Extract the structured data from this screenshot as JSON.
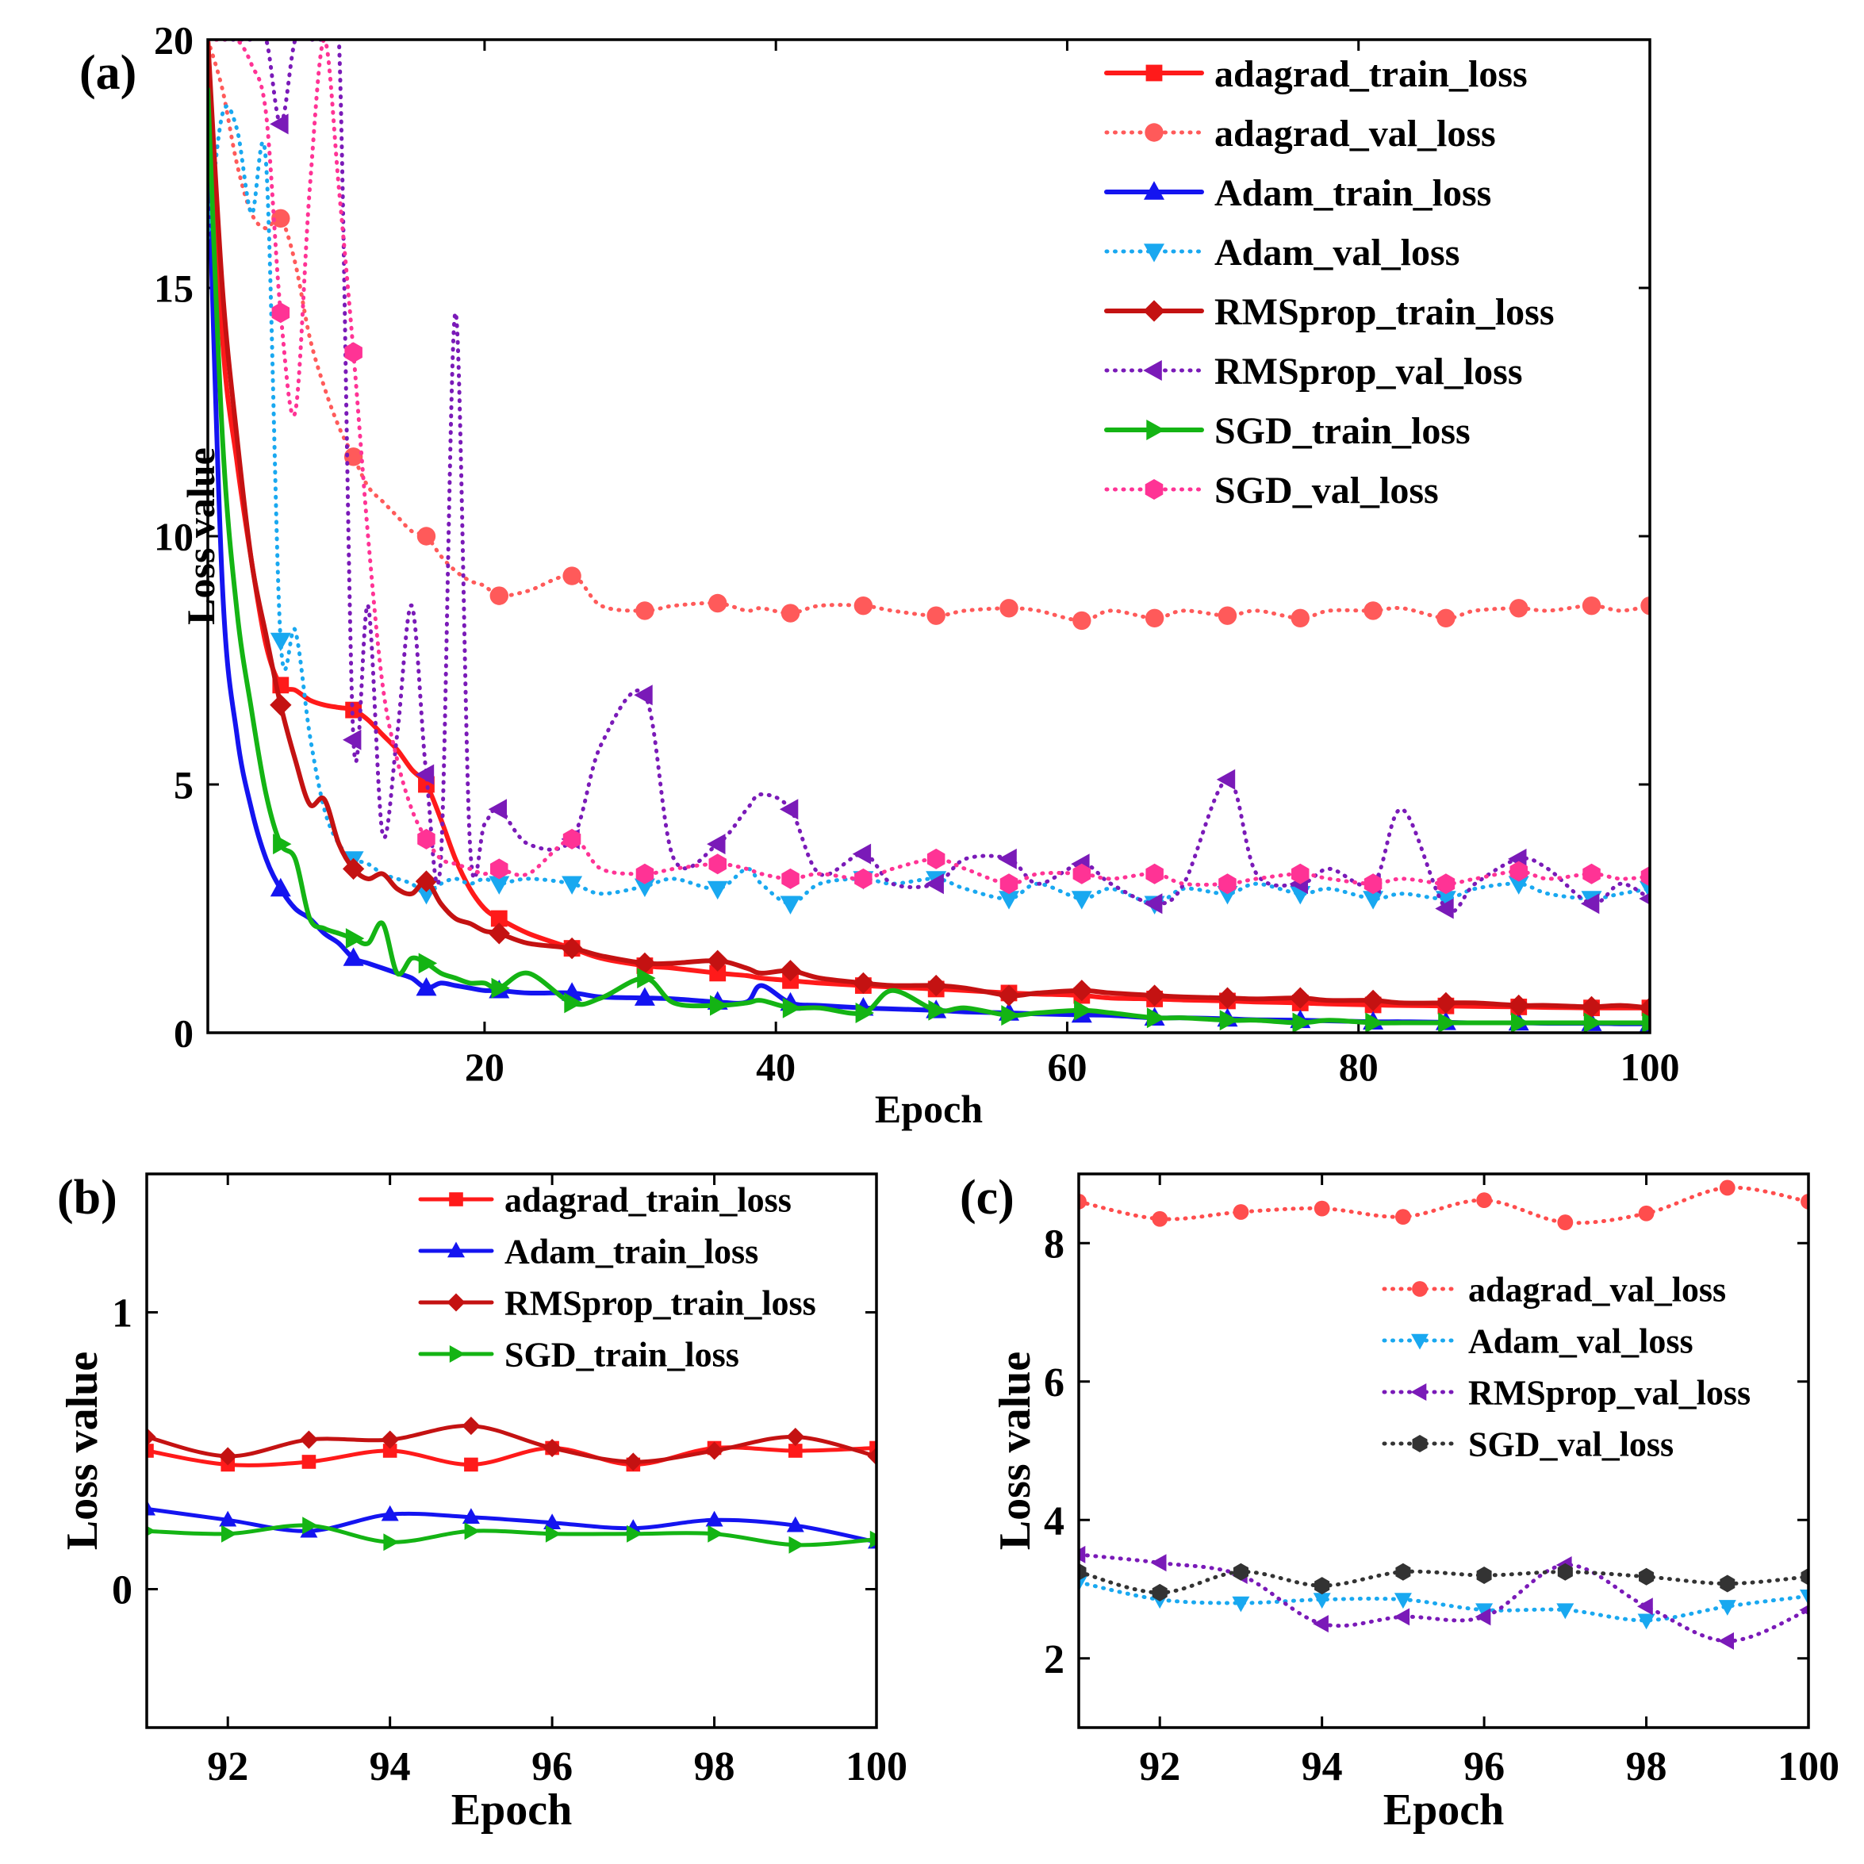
{
  "chart_data": [
    {
      "panel": "(a)",
      "type": "line",
      "xlabel": "Epoch",
      "ylabel": "Loss value",
      "xlim": [
        1,
        100
      ],
      "ylim": [
        0,
        20
      ],
      "xticks": [
        20,
        40,
        60,
        80,
        100
      ],
      "yticks": [
        0,
        5,
        10,
        15,
        20
      ],
      "legend": "top-right",
      "x": [
        1,
        2,
        3,
        4,
        5,
        6,
        7,
        8,
        9,
        10,
        11,
        12,
        13,
        14,
        15,
        16,
        17,
        18,
        19,
        20,
        21,
        23,
        26,
        28,
        31,
        33,
        36,
        38,
        39,
        41,
        43,
        46,
        48,
        51,
        53,
        56,
        58,
        61,
        63,
        66,
        68,
        71,
        73,
        76,
        78,
        81,
        83,
        86,
        88,
        91,
        93,
        96,
        98,
        100
      ],
      "series": [
        {
          "name": "adagrad_train_loss",
          "color": "#ff1a1a",
          "style": "solid",
          "marker": "square",
          "values": [
            20,
            14,
            11.5,
            9.5,
            7.8,
            7.0,
            6.9,
            6.7,
            6.6,
            6.55,
            6.5,
            6.3,
            6.0,
            5.7,
            5.3,
            5.0,
            4.3,
            3.5,
            2.9,
            2.5,
            2.3,
            2.0,
            1.7,
            1.5,
            1.35,
            1.3,
            1.2,
            1.15,
            1.1,
            1.05,
            1.0,
            0.95,
            0.92,
            0.88,
            0.85,
            0.8,
            0.78,
            0.75,
            0.7,
            0.68,
            0.66,
            0.64,
            0.62,
            0.6,
            0.58,
            0.56,
            0.55,
            0.54,
            0.53,
            0.52,
            0.51,
            0.5,
            0.5,
            0.5
          ]
        },
        {
          "name": "adagrad_val_loss",
          "color": "#ff5a5a",
          "style": "dotted",
          "marker": "circle",
          "values": [
            20,
            19,
            17.5,
            16.5,
            16.2,
            16.4,
            15.5,
            14,
            13,
            12.2,
            11.6,
            11.0,
            10.7,
            10.4,
            10.1,
            10.0,
            9.6,
            9.3,
            9.1,
            9.0,
            8.8,
            8.9,
            9.2,
            8.6,
            8.5,
            8.6,
            8.65,
            8.5,
            8.55,
            8.45,
            8.6,
            8.6,
            8.5,
            8.4,
            8.5,
            8.55,
            8.5,
            8.3,
            8.5,
            8.35,
            8.5,
            8.4,
            8.5,
            8.35,
            8.5,
            8.5,
            8.55,
            8.35,
            8.5,
            8.55,
            8.5,
            8.6,
            8.5,
            8.6
          ]
        },
        {
          "name": "Adam_train_loss",
          "color": "#1414f0",
          "style": "solid",
          "marker": "triangle-up",
          "values": [
            18,
            9,
            6,
            4.5,
            3.5,
            2.9,
            2.5,
            2.3,
            2.0,
            1.8,
            1.5,
            1.4,
            1.3,
            1.2,
            1.1,
            0.9,
            1.0,
            0.95,
            0.9,
            0.85,
            0.85,
            0.8,
            0.8,
            0.72,
            0.7,
            0.68,
            0.62,
            0.62,
            0.95,
            0.6,
            0.55,
            0.5,
            0.48,
            0.45,
            0.42,
            0.4,
            0.38,
            0.36,
            0.35,
            0.3,
            0.3,
            0.28,
            0.26,
            0.25,
            0.24,
            0.22,
            0.22,
            0.21,
            0.2,
            0.2,
            0.19,
            0.19,
            0.18,
            0.18
          ]
        },
        {
          "name": "Adam_val_loss",
          "color": "#19a8f0",
          "style": "dotted",
          "marker": "triangle-down",
          "values": [
            16,
            18.5,
            18.2,
            16.5,
            17.5,
            7.9,
            8.1,
            6.0,
            4.5,
            3.8,
            3.5,
            3.4,
            3.2,
            3.1,
            3.0,
            2.8,
            3.0,
            3.1,
            3.0,
            3.1,
            3.0,
            3.1,
            3.0,
            2.8,
            2.95,
            3.1,
            2.9,
            3.3,
            3.0,
            2.6,
            3.0,
            3.1,
            3.0,
            3.1,
            2.9,
            2.7,
            3.0,
            2.7,
            2.9,
            2.6,
            2.9,
            2.8,
            3.0,
            2.8,
            2.9,
            2.7,
            2.8,
            2.7,
            2.9,
            3.0,
            2.8,
            2.7,
            2.8,
            2.9
          ]
        },
        {
          "name": "RMSprop_train_loss",
          "color": "#c41212",
          "style": "solid",
          "marker": "diamond",
          "values": [
            20,
            15,
            12,
            9.5,
            8.0,
            6.6,
            5.5,
            4.6,
            4.7,
            3.8,
            3.3,
            3.1,
            3.2,
            2.9,
            2.8,
            3.05,
            2.6,
            2.3,
            2.2,
            2.05,
            2.0,
            1.8,
            1.7,
            1.55,
            1.4,
            1.4,
            1.45,
            1.3,
            1.2,
            1.25,
            1.1,
            1.0,
            0.95,
            0.95,
            0.9,
            0.75,
            0.8,
            0.85,
            0.8,
            0.75,
            0.72,
            0.7,
            0.68,
            0.7,
            0.65,
            0.65,
            0.6,
            0.6,
            0.6,
            0.55,
            0.55,
            0.52,
            0.55,
            0.5
          ]
        },
        {
          "name": "RMSprop_val_loss",
          "color": "#7a1ab8",
          "style": "dotted",
          "marker": "triangle-left",
          "values": [
            20,
            20,
            20,
            20,
            20,
            18.3,
            20,
            20,
            20,
            20,
            5.9,
            8.6,
            4.0,
            6.0,
            8.6,
            5.2,
            3.5,
            14.5,
            3.8,
            4.2,
            4.5,
            3.8,
            3.9,
            5.8,
            6.8,
            3.5,
            3.8,
            4.5,
            4.8,
            4.5,
            3.2,
            3.6,
            3.0,
            3.0,
            3.5,
            3.5,
            3.0,
            3.4,
            3.0,
            2.6,
            3.0,
            5.1,
            3.2,
            3.0,
            3.3,
            3.0,
            4.5,
            2.5,
            3.0,
            3.5,
            3.3,
            2.6,
            3.0,
            2.7
          ]
        },
        {
          "name": "SGD_train_loss",
          "color": "#14b414",
          "style": "solid",
          "marker": "triangle-right",
          "values": [
            19,
            12,
            8.5,
            6.5,
            4.8,
            3.8,
            3.5,
            2.3,
            2.1,
            2.0,
            1.9,
            1.8,
            2.2,
            1.2,
            1.5,
            1.4,
            1.2,
            1.1,
            1.0,
            1.0,
            0.9,
            1.2,
            0.6,
            0.7,
            1.1,
            0.6,
            0.55,
            0.6,
            0.65,
            0.5,
            0.5,
            0.4,
            0.85,
            0.45,
            0.5,
            0.35,
            0.4,
            0.45,
            0.4,
            0.3,
            0.3,
            0.25,
            0.25,
            0.2,
            0.25,
            0.2,
            0.2,
            0.2,
            0.2,
            0.2,
            0.2,
            0.2,
            0.2,
            0.2
          ]
        },
        {
          "name": "SGD_val_loss",
          "color": "#ff3395",
          "style": "dotted",
          "marker": "hexagon",
          "values": [
            20,
            20,
            20,
            19.5,
            18.5,
            14.5,
            12.5,
            17,
            20,
            17,
            13.7,
            10,
            7,
            5.5,
            4.5,
            3.9,
            3.5,
            3.4,
            3.3,
            3.2,
            3.3,
            3.2,
            3.9,
            3.3,
            3.2,
            3.3,
            3.4,
            3.3,
            3.2,
            3.1,
            3.2,
            3.1,
            3.3,
            3.5,
            3.3,
            3.0,
            3.2,
            3.2,
            3.1,
            3.2,
            3.0,
            3.0,
            3.1,
            3.2,
            3.1,
            3.0,
            3.1,
            3.0,
            3.1,
            3.25,
            3.1,
            3.2,
            3.1,
            3.15
          ]
        }
      ]
    },
    {
      "panel": "(b)",
      "type": "line",
      "xlabel": "Epoch",
      "ylabel": "Loss value",
      "xlim": [
        91,
        100
      ],
      "ylim": [
        -0.5,
        1.5
      ],
      "xticks": [
        92,
        94,
        96,
        98,
        100
      ],
      "yticks": [
        0,
        1
      ],
      "legend": "top-right",
      "x": [
        91,
        92,
        93,
        94,
        95,
        96,
        97,
        98,
        99,
        100
      ],
      "series": [
        {
          "name": "adagrad_train_loss",
          "color": "#ff1a1a",
          "style": "solid",
          "marker": "square",
          "values": [
            0.5,
            0.45,
            0.46,
            0.5,
            0.45,
            0.51,
            0.45,
            0.51,
            0.5,
            0.51
          ]
        },
        {
          "name": "Adam_train_loss",
          "color": "#1414f0",
          "style": "solid",
          "marker": "triangle-up",
          "values": [
            0.29,
            0.25,
            0.21,
            0.27,
            0.26,
            0.24,
            0.22,
            0.25,
            0.23,
            0.17
          ]
        },
        {
          "name": "RMSprop_train_loss",
          "color": "#c41212",
          "style": "solid",
          "marker": "diamond",
          "values": [
            0.55,
            0.48,
            0.54,
            0.54,
            0.59,
            0.51,
            0.46,
            0.5,
            0.55,
            0.48
          ]
        },
        {
          "name": "SGD_train_loss",
          "color": "#14b414",
          "style": "solid",
          "marker": "triangle-right",
          "values": [
            0.21,
            0.2,
            0.23,
            0.17,
            0.21,
            0.2,
            0.2,
            0.2,
            0.16,
            0.18
          ]
        }
      ]
    },
    {
      "panel": "(c)",
      "type": "line",
      "xlabel": "Epoch",
      "ylabel": "Loss value",
      "xlim": [
        91,
        100
      ],
      "ylim": [
        1,
        9
      ],
      "xticks": [
        92,
        94,
        96,
        98,
        100
      ],
      "yticks": [
        2,
        4,
        6,
        8
      ],
      "legend": "right",
      "x": [
        91,
        92,
        93,
        94,
        95,
        96,
        97,
        98,
        99,
        100
      ],
      "series": [
        {
          "name": "adagrad_val_loss",
          "color": "#ff4d4d",
          "style": "dotted",
          "marker": "circle",
          "values": [
            8.6,
            8.35,
            8.45,
            8.5,
            8.38,
            8.62,
            8.3,
            8.43,
            8.8,
            8.6
          ]
        },
        {
          "name": "Adam_val_loss",
          "color": "#19a8f0",
          "style": "dotted",
          "marker": "triangle-down",
          "values": [
            3.1,
            2.85,
            2.8,
            2.85,
            2.85,
            2.7,
            2.7,
            2.55,
            2.75,
            2.9
          ]
        },
        {
          "name": "RMSprop_val_loss",
          "color": "#7a1ab8",
          "style": "dotted",
          "marker": "triangle-left",
          "values": [
            3.5,
            3.38,
            3.2,
            2.5,
            2.6,
            2.6,
            3.35,
            2.75,
            2.25,
            2.7
          ]
        },
        {
          "name": "SGD_val_loss",
          "color": "#333333",
          "style": "dotted",
          "marker": "hexagon",
          "values": [
            3.25,
            2.95,
            3.25,
            3.05,
            3.25,
            3.2,
            3.25,
            3.18,
            3.08,
            3.18
          ]
        }
      ]
    }
  ]
}
